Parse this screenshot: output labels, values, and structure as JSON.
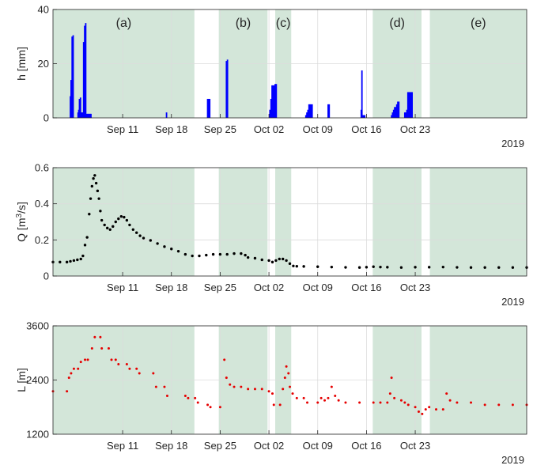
{
  "colors": {
    "shade": "#d3e6d9",
    "h_bars": "#0000ff",
    "q_points": "#000000",
    "l_points": "#e60000",
    "grid": "#dcdcdc",
    "axis": "#262626"
  },
  "chart_data": [
    {
      "type": "bar",
      "ylabel": "h [mm]",
      "ylim": [
        0,
        40
      ],
      "yticks": [
        "0",
        "20",
        "40"
      ],
      "xlim": [
        0,
        68
      ],
      "x_unit": "days since Sep 01 2019",
      "xticks": [
        {
          "x": 10,
          "label": "Sep 11"
        },
        {
          "x": 17,
          "label": "Sep 18"
        },
        {
          "x": 24,
          "label": "Sep 25"
        },
        {
          "x": 31,
          "label": "Oct 02"
        },
        {
          "x": 38,
          "label": "Oct 09"
        },
        {
          "x": 45,
          "label": "Oct 16"
        },
        {
          "x": 52,
          "label": "Oct 23"
        }
      ],
      "year_label": "2019",
      "shaded_periods": [
        {
          "label": "(a)",
          "start": 0,
          "end": 20.3
        },
        {
          "label": "(b)",
          "start": 23.8,
          "end": 30.8
        },
        {
          "label": "(c)",
          "start": 31.9,
          "end": 34.2
        },
        {
          "label": "(d)",
          "start": 45.9,
          "end": 52.9
        },
        {
          "label": "(e)",
          "start": 54.1,
          "end": 68
        }
      ],
      "values": [
        [
          2.5,
          8
        ],
        [
          2.6,
          14
        ],
        [
          2.75,
          30
        ],
        [
          2.9,
          30.5
        ],
        [
          3.6,
          2
        ],
        [
          3.7,
          3
        ],
        [
          3.8,
          7
        ],
        [
          3.95,
          7.5
        ],
        [
          4.1,
          2
        ],
        [
          4.25,
          2
        ],
        [
          4.4,
          28
        ],
        [
          4.55,
          34
        ],
        [
          4.7,
          35
        ],
        [
          4.85,
          1.5
        ],
        [
          5.0,
          1.5
        ],
        [
          5.15,
          1.5
        ],
        [
          5.3,
          1.5
        ],
        [
          5.45,
          1.5
        ],
        [
          16.3,
          2
        ],
        [
          22.2,
          7
        ],
        [
          22.35,
          7
        ],
        [
          22.5,
          7
        ],
        [
          24.9,
          21
        ],
        [
          25.05,
          21.5
        ],
        [
          31.15,
          3
        ],
        [
          31.3,
          7
        ],
        [
          31.45,
          12
        ],
        [
          31.6,
          12
        ],
        [
          31.75,
          12
        ],
        [
          31.9,
          12.5
        ],
        [
          32.05,
          12.5
        ],
        [
          36.3,
          1
        ],
        [
          36.45,
          2
        ],
        [
          36.6,
          3
        ],
        [
          36.75,
          5
        ],
        [
          36.9,
          5
        ],
        [
          37.05,
          5
        ],
        [
          37.2,
          5
        ],
        [
          39.5,
          5
        ],
        [
          39.65,
          5
        ],
        [
          44.25,
          3
        ],
        [
          44.35,
          17.5
        ],
        [
          44.5,
          1
        ],
        [
          44.6,
          1
        ],
        [
          44.75,
          1
        ],
        [
          48.6,
          1
        ],
        [
          48.75,
          2
        ],
        [
          48.9,
          3
        ],
        [
          49.05,
          4
        ],
        [
          49.2,
          4
        ],
        [
          49.35,
          5
        ],
        [
          49.5,
          6
        ],
        [
          49.65,
          6
        ],
        [
          50.5,
          2
        ],
        [
          50.65,
          2
        ],
        [
          50.8,
          3
        ],
        [
          50.95,
          9.5
        ],
        [
          51.1,
          9.5
        ],
        [
          51.25,
          9.5
        ],
        [
          51.4,
          9.5
        ],
        [
          51.55,
          9.5
        ]
      ]
    },
    {
      "type": "scatter",
      "ylabel": "Q [m³/s]",
      "ylim": [
        0,
        0.7
      ],
      "yticks": [
        "0",
        "0.2",
        "0.4",
        "0.6"
      ],
      "xlim": [
        0,
        68
      ],
      "series": [
        {
          "name": "",
          "points": [
            [
              0,
              0.09
            ],
            [
              1,
              0.09
            ],
            [
              2,
              0.09
            ],
            [
              2.5,
              0.095
            ],
            [
              3,
              0.1
            ],
            [
              3.5,
              0.105
            ],
            [
              4,
              0.11
            ],
            [
              4.3,
              0.13
            ],
            [
              4.6,
              0.2
            ],
            [
              4.9,
              0.25
            ],
            [
              5.2,
              0.4
            ],
            [
              5.4,
              0.5
            ],
            [
              5.6,
              0.58
            ],
            [
              5.8,
              0.63
            ],
            [
              6.0,
              0.65
            ],
            [
              6.2,
              0.6
            ],
            [
              6.4,
              0.55
            ],
            [
              6.6,
              0.5
            ],
            [
              6.8,
              0.42
            ],
            [
              7.0,
              0.36
            ],
            [
              7.4,
              0.33
            ],
            [
              7.8,
              0.31
            ],
            [
              8.2,
              0.3
            ],
            [
              8.6,
              0.32
            ],
            [
              9.0,
              0.35
            ],
            [
              9.4,
              0.37
            ],
            [
              9.8,
              0.385
            ],
            [
              10.2,
              0.38
            ],
            [
              10.6,
              0.36
            ],
            [
              11,
              0.33
            ],
            [
              11.5,
              0.3
            ],
            [
              12,
              0.28
            ],
            [
              12.5,
              0.26
            ],
            [
              13,
              0.245
            ],
            [
              14,
              0.23
            ],
            [
              15,
              0.21
            ],
            [
              16,
              0.19
            ],
            [
              17,
              0.175
            ],
            [
              18,
              0.16
            ],
            [
              19,
              0.14
            ],
            [
              20,
              0.13
            ],
            [
              21,
              0.13
            ],
            [
              22,
              0.135
            ],
            [
              23,
              0.14
            ],
            [
              24,
              0.14
            ],
            [
              25,
              0.14
            ],
            [
              26,
              0.145
            ],
            [
              27,
              0.145
            ],
            [
              27.6,
              0.135
            ],
            [
              28,
              0.12
            ],
            [
              29,
              0.115
            ],
            [
              30,
              0.105
            ],
            [
              31,
              0.1
            ],
            [
              31.5,
              0.09
            ],
            [
              32,
              0.1
            ],
            [
              32.5,
              0.11
            ],
            [
              33,
              0.11
            ],
            [
              33.5,
              0.1
            ],
            [
              34,
              0.08
            ],
            [
              34.5,
              0.065
            ],
            [
              35,
              0.063
            ],
            [
              36,
              0.062
            ],
            [
              38,
              0.06
            ],
            [
              40,
              0.058
            ],
            [
              42,
              0.056
            ],
            [
              44,
              0.055
            ],
            [
              45,
              0.057
            ],
            [
              46,
              0.06
            ],
            [
              47,
              0.058
            ],
            [
              48,
              0.057
            ],
            [
              50,
              0.055
            ],
            [
              52,
              0.057
            ],
            [
              54,
              0.057
            ],
            [
              56,
              0.058
            ],
            [
              58,
              0.056
            ],
            [
              60,
              0.055
            ],
            [
              62,
              0.055
            ],
            [
              64,
              0.055
            ],
            [
              66,
              0.055
            ],
            [
              68,
              0.055
            ]
          ]
        }
      ],
      "xticks": [
        "Sep 11",
        "Sep 18",
        "Sep 25",
        "Oct 02",
        "Oct 09",
        "Oct 16",
        "Oct 23"
      ],
      "year_label": "2019"
    },
    {
      "type": "scatter",
      "ylabel": "L [m]",
      "ylim": [
        1200,
        3600
      ],
      "yticks": [
        "1200",
        "2400",
        "3600"
      ],
      "xlim": [
        0,
        68
      ],
      "series": [
        {
          "name": "",
          "points": [
            [
              0,
              2150
            ],
            [
              2,
              2150
            ],
            [
              2.3,
              2450
            ],
            [
              2.6,
              2550
            ],
            [
              3,
              2650
            ],
            [
              3.6,
              2650
            ],
            [
              4,
              2800
            ],
            [
              4.6,
              2850
            ],
            [
              5,
              2850
            ],
            [
              5.6,
              3100
            ],
            [
              6,
              3350
            ],
            [
              6.8,
              3350
            ],
            [
              7,
              3100
            ],
            [
              8,
              3100
            ],
            [
              8.4,
              2850
            ],
            [
              9,
              2850
            ],
            [
              9.4,
              2750
            ],
            [
              10.6,
              2750
            ],
            [
              11,
              2650
            ],
            [
              12,
              2650
            ],
            [
              12.4,
              2550
            ],
            [
              14.4,
              2550
            ],
            [
              14.8,
              2250
            ],
            [
              16,
              2250
            ],
            [
              16.4,
              2050
            ],
            [
              19,
              2050
            ],
            [
              19.4,
              2000
            ],
            [
              20.4,
              2000
            ],
            [
              20.8,
              1900
            ],
            [
              22.2,
              1850
            ],
            [
              22.6,
              1800
            ],
            [
              24,
              1800
            ],
            [
              24.6,
              2850
            ],
            [
              24.9,
              2450
            ],
            [
              25.4,
              2300
            ],
            [
              26,
              2250
            ],
            [
              27,
              2250
            ],
            [
              28,
              2200
            ],
            [
              29,
              2200
            ],
            [
              30,
              2200
            ],
            [
              31,
              2150
            ],
            [
              31.5,
              2100
            ],
            [
              31.7,
              1850
            ],
            [
              32.6,
              1850
            ],
            [
              33,
              2200
            ],
            [
              33.3,
              2450
            ],
            [
              33.5,
              2700
            ],
            [
              33.8,
              2550
            ],
            [
              34,
              2250
            ],
            [
              34.4,
              2100
            ],
            [
              35,
              2000
            ],
            [
              36,
              2000
            ],
            [
              36.5,
              1900
            ],
            [
              38,
              1900
            ],
            [
              38.5,
              2000
            ],
            [
              39,
              1950
            ],
            [
              39.5,
              2000
            ],
            [
              40,
              2250
            ],
            [
              40.5,
              2050
            ],
            [
              41,
              1950
            ],
            [
              42,
              1900
            ],
            [
              44,
              1900
            ],
            [
              46,
              1900
            ],
            [
              47,
              1900
            ],
            [
              48,
              1900
            ],
            [
              48.4,
              2100
            ],
            [
              48.6,
              2450
            ],
            [
              49,
              2000
            ],
            [
              50,
              1950
            ],
            [
              50.5,
              1900
            ],
            [
              51,
              1850
            ],
            [
              52,
              1800
            ],
            [
              52.5,
              1700
            ],
            [
              53,
              1650
            ],
            [
              53.5,
              1750
            ],
            [
              54,
              1800
            ],
            [
              55,
              1750
            ],
            [
              56,
              1750
            ],
            [
              56.5,
              2100
            ],
            [
              57,
              1950
            ],
            [
              58,
              1900
            ],
            [
              60,
              1900
            ],
            [
              62,
              1850
            ],
            [
              64,
              1850
            ],
            [
              66,
              1850
            ],
            [
              68,
              1850
            ]
          ]
        }
      ],
      "xticks": [
        "Sep 11",
        "Sep 18",
        "Sep 25",
        "Oct 02",
        "Oct 09",
        "Oct 16",
        "Oct 23"
      ],
      "year_label": "2019"
    }
  ]
}
